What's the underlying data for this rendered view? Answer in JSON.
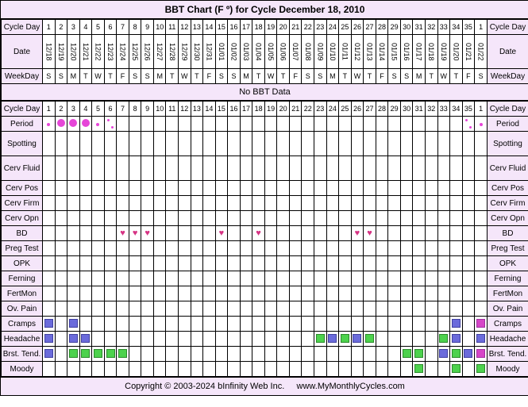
{
  "title": "BBT Chart (F º) for Cycle December 18, 2010",
  "no_data_msg": "No BBT Data",
  "footer_copyright": "Copyright © 2003-2024 bInfinity Web Inc.",
  "footer_url": "www.MyMonthlyCycles.com",
  "labels": {
    "cycle_day": "Cycle Day",
    "date": "Date",
    "weekday": "WeekDay",
    "period": "Period",
    "spotting": "Spotting",
    "cerv_fluid": "Cerv Fluid",
    "cerv_pos": "Cerv Pos",
    "cerv_firm": "Cerv Firm",
    "cerv_opn": "Cerv Opn",
    "bd": "BD",
    "preg_test": "Preg Test",
    "opk": "OPK",
    "ferning": "Ferning",
    "fertmon": "FertMon",
    "ov_pain": "Ov. Pain",
    "cramps": "Cramps",
    "headache": "Headache",
    "brst_tend": "Brst. Tend.",
    "moody": "Moody"
  },
  "cycle_days": [
    1,
    2,
    3,
    4,
    5,
    6,
    7,
    8,
    9,
    10,
    11,
    12,
    13,
    14,
    15,
    16,
    17,
    18,
    19,
    20,
    21,
    22,
    23,
    24,
    25,
    26,
    27,
    28,
    29,
    30,
    31,
    32,
    33,
    34,
    35,
    1
  ],
  "dates": [
    "12/18",
    "12/19",
    "12/20",
    "12/21",
    "12/22",
    "12/23",
    "12/24",
    "12/25",
    "12/26",
    "12/27",
    "12/28",
    "12/29",
    "12/30",
    "12/31",
    "01/01",
    "01/02",
    "01/03",
    "01/04",
    "01/05",
    "01/06",
    "01/07",
    "01/08",
    "01/09",
    "01/10",
    "01/11",
    "01/12",
    "01/13",
    "01/14",
    "01/15",
    "01/16",
    "01/17",
    "01/18",
    "01/19",
    "01/20",
    "01/21",
    "01/22"
  ],
  "weekdays": [
    "S",
    "S",
    "M",
    "T",
    "W",
    "T",
    "F",
    "S",
    "S",
    "M",
    "T",
    "W",
    "T",
    "F",
    "S",
    "S",
    "M",
    "T",
    "W",
    "T",
    "F",
    "S",
    "S",
    "M",
    "T",
    "W",
    "T",
    "F",
    "S",
    "S",
    "M",
    "T",
    "W",
    "T",
    "F",
    "S"
  ],
  "colors": {
    "bg_lavender": "#f5e6fa",
    "period_dot": "#e646d8",
    "heart": "#d63384",
    "square_green": "#4dd24d",
    "square_blue": "#6b6bdb",
    "square_magenta": "#d646c8"
  },
  "grid": {
    "period": [
      "sm",
      "lg",
      "lg",
      "lg",
      "sm",
      "diag",
      "",
      "",
      "",
      "",
      "",
      "",
      "",
      "",
      "",
      "",
      "",
      "",
      "",
      "",
      "",
      "",
      "",
      "",
      "",
      "",
      "",
      "",
      "",
      "",
      "",
      "",
      "",
      "",
      "diag",
      "sm"
    ],
    "spotting": [
      "",
      "",
      "",
      "",
      "",
      "",
      "",
      "",
      "",
      "",
      "",
      "",
      "",
      "",
      "",
      "",
      "",
      "",
      "",
      "",
      "",
      "",
      "",
      "",
      "",
      "",
      "",
      "",
      "",
      "",
      "",
      "",
      "",
      "",
      "",
      ""
    ],
    "cerv_fluid": [
      "",
      "",
      "",
      "",
      "",
      "",
      "",
      "",
      "",
      "",
      "",
      "",
      "",
      "",
      "",
      "",
      "",
      "",
      "",
      "",
      "",
      "",
      "",
      "",
      "",
      "",
      "",
      "",
      "",
      "",
      "",
      "",
      "",
      "",
      "",
      ""
    ],
    "cerv_pos": [
      "",
      "",
      "",
      "",
      "",
      "",
      "",
      "",
      "",
      "",
      "",
      "",
      "",
      "",
      "",
      "",
      "",
      "",
      "",
      "",
      "",
      "",
      "",
      "",
      "",
      "",
      "",
      "",
      "",
      "",
      "",
      "",
      "",
      "",
      "",
      ""
    ],
    "cerv_firm": [
      "",
      "",
      "",
      "",
      "",
      "",
      "",
      "",
      "",
      "",
      "",
      "",
      "",
      "",
      "",
      "",
      "",
      "",
      "",
      "",
      "",
      "",
      "",
      "",
      "",
      "",
      "",
      "",
      "",
      "",
      "",
      "",
      "",
      "",
      "",
      ""
    ],
    "cerv_opn": [
      "",
      "",
      "",
      "",
      "",
      "",
      "",
      "",
      "",
      "",
      "",
      "",
      "",
      "",
      "",
      "",
      "",
      "",
      "",
      "",
      "",
      "",
      "",
      "",
      "",
      "",
      "",
      "",
      "",
      "",
      "",
      "",
      "",
      "",
      "",
      ""
    ],
    "bd": [
      "",
      "",
      "",
      "",
      "",
      "",
      "h",
      "h",
      "h",
      "",
      "",
      "",
      "",
      "",
      "h",
      "",
      "",
      "h",
      "",
      "",
      "",
      "",
      "",
      "",
      "",
      "h",
      "h",
      "",
      "",
      "",
      "",
      "",
      "",
      "",
      "",
      ""
    ],
    "preg_test": [
      "",
      "",
      "",
      "",
      "",
      "",
      "",
      "",
      "",
      "",
      "",
      "",
      "",
      "",
      "",
      "",
      "",
      "",
      "",
      "",
      "",
      "",
      "",
      "",
      "",
      "",
      "",
      "",
      "",
      "",
      "",
      "",
      "",
      "",
      "",
      ""
    ],
    "opk": [
      "",
      "",
      "",
      "",
      "",
      "",
      "",
      "",
      "",
      "",
      "",
      "",
      "",
      "",
      "",
      "",
      "",
      "",
      "",
      "",
      "",
      "",
      "",
      "",
      "",
      "",
      "",
      "",
      "",
      "",
      "",
      "",
      "",
      "",
      "",
      ""
    ],
    "ferning": [
      "",
      "",
      "",
      "",
      "",
      "",
      "",
      "",
      "",
      "",
      "",
      "",
      "",
      "",
      "",
      "",
      "",
      "",
      "",
      "",
      "",
      "",
      "",
      "",
      "",
      "",
      "",
      "",
      "",
      "",
      "",
      "",
      "",
      "",
      "",
      ""
    ],
    "fertmon": [
      "",
      "",
      "",
      "",
      "",
      "",
      "",
      "",
      "",
      "",
      "",
      "",
      "",
      "",
      "",
      "",
      "",
      "",
      "",
      "",
      "",
      "",
      "",
      "",
      "",
      "",
      "",
      "",
      "",
      "",
      "",
      "",
      "",
      "",
      "",
      ""
    ],
    "ov_pain": [
      "",
      "",
      "",
      "",
      "",
      "",
      "",
      "",
      "",
      "",
      "",
      "",
      "",
      "",
      "",
      "",
      "",
      "",
      "",
      "",
      "",
      "",
      "",
      "",
      "",
      "",
      "",
      "",
      "",
      "",
      "",
      "",
      "",
      "",
      "",
      ""
    ],
    "cramps": [
      "b",
      "",
      "b",
      "",
      "",
      "",
      "",
      "",
      "",
      "",
      "",
      "",
      "",
      "",
      "",
      "",
      "",
      "",
      "",
      "",
      "",
      "",
      "",
      "",
      "",
      "",
      "",
      "",
      "",
      "",
      "",
      "",
      "",
      "b",
      "",
      "m"
    ],
    "headache": [
      "b",
      "",
      "b",
      "b",
      "",
      "",
      "",
      "",
      "",
      "",
      "",
      "",
      "",
      "",
      "",
      "",
      "",
      "",
      "",
      "",
      "",
      "",
      "g",
      "b",
      "g",
      "b",
      "g",
      "",
      "",
      "",
      "",
      "",
      "g",
      "b",
      "",
      "b"
    ],
    "brst_tend": [
      "b",
      "",
      "g",
      "g",
      "g",
      "g",
      "g",
      "",
      "",
      "",
      "",
      "",
      "",
      "",
      "",
      "",
      "",
      "",
      "",
      "",
      "",
      "",
      "",
      "",
      "",
      "",
      "",
      "",
      "",
      "g",
      "g",
      "",
      "b",
      "g",
      "b",
      "m"
    ],
    "moody": [
      "",
      "",
      "",
      "",
      "",
      "",
      "",
      "",
      "",
      "",
      "",
      "",
      "",
      "",
      "",
      "",
      "",
      "",
      "",
      "",
      "",
      "",
      "",
      "",
      "",
      "",
      "",
      "",
      "",
      "",
      "g",
      "",
      "",
      "g",
      "",
      "g"
    ]
  },
  "row_order": [
    "period",
    "spotting",
    "cerv_fluid",
    "cerv_pos",
    "cerv_firm",
    "cerv_opn",
    "bd",
    "preg_test",
    "opk",
    "ferning",
    "fertmon",
    "ov_pain",
    "cramps",
    "headache",
    "brst_tend",
    "moody"
  ],
  "tall_rows": [
    "spotting",
    "cerv_fluid"
  ]
}
